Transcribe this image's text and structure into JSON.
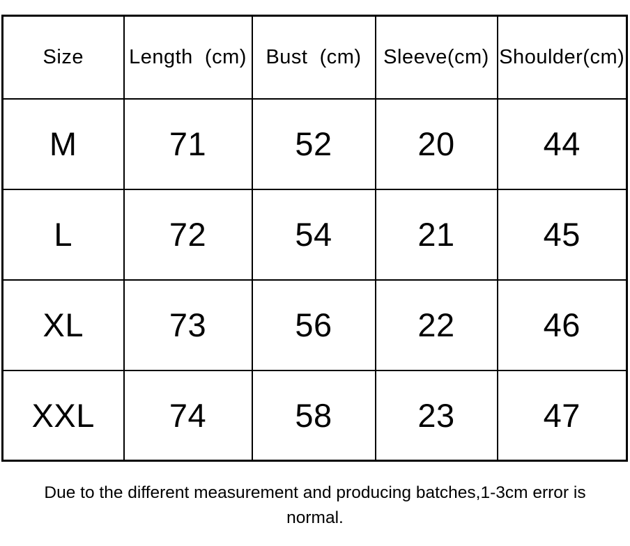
{
  "chart_data": {
    "type": "table",
    "title": "",
    "headers": [
      "Size",
      "Length  (cm)",
      "Bust  (cm)",
      "Sleeve(cm)",
      "Shoulder(cm)"
    ],
    "rows": [
      [
        "M",
        "71",
        "52",
        "20",
        "44"
      ],
      [
        "L",
        "72",
        "54",
        "21",
        "45"
      ],
      [
        "XL",
        "73",
        "56",
        "22",
        "46"
      ],
      [
        "XXL",
        "74",
        "58",
        "23",
        "47"
      ]
    ]
  },
  "footnote": {
    "lines": [
      "Due to the different measurement and producing batches,1-3cm error is",
      "normal."
    ]
  }
}
